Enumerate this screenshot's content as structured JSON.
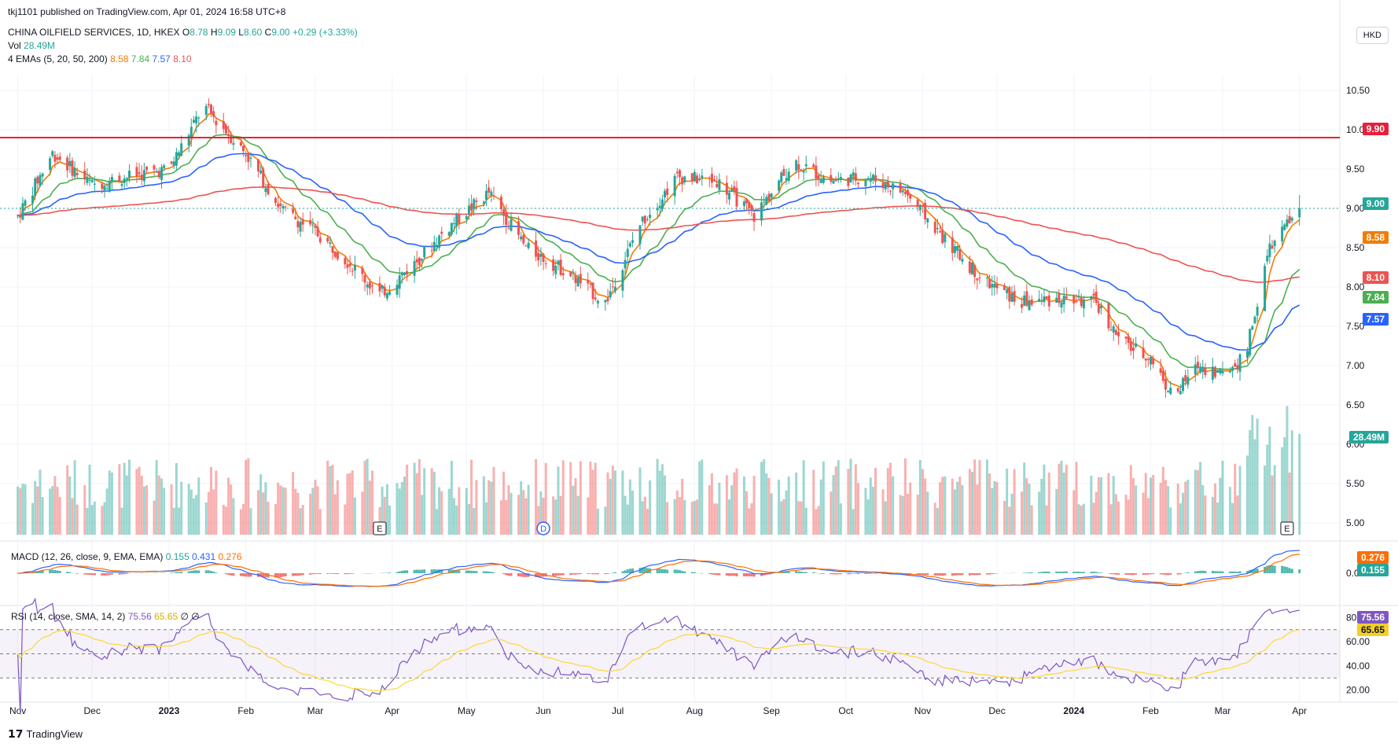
{
  "publisher_line": "tkj1101 published on TradingView.com, Apr 01, 2024 16:58 UTC+8",
  "symbol_line": {
    "name": "CHINA OILFIELD SERVICES, 1D, HKEX",
    "o_label": "O",
    "o": "8.78",
    "h_label": "H",
    "h": "9.09",
    "l_label": "L",
    "l": "8.60",
    "c_label": "C",
    "c": "9.00",
    "change": "+0.29 (+3.33%)"
  },
  "vol_line": {
    "label": "Vol",
    "value": "28.49M"
  },
  "ema_line": {
    "label": "4 EMAs (5, 20, 50, 200)",
    "v5": "8.58",
    "v20": "7.84",
    "v50": "7.57",
    "v200": "8.10"
  },
  "macd_line": {
    "label": "MACD (12, 26, close, 9, EMA, EMA)",
    "hist": "0.155",
    "macd": "0.431",
    "signal": "0.276"
  },
  "rsi_line": {
    "label": "RSI (14, close, SMA, 14, 2)",
    "rsi": "75.56",
    "sma": "65.65",
    "n1": "∅",
    "n2": "∅"
  },
  "currency_button": "HKD",
  "footer_brand": "TradingView",
  "price_axis_ticks": [
    "10.50",
    "10.00",
    "9.50",
    "9.00",
    "8.50",
    "8.00",
    "7.50",
    "7.00",
    "6.50",
    "6.00",
    "5.50",
    "5.00"
  ],
  "macd_axis_ticks": [
    "0.000"
  ],
  "rsi_axis_ticks": [
    "80.00",
    "60.00",
    "40.00",
    "20.00"
  ],
  "time_axis_labels": [
    "Nov",
    "Dec",
    "2023",
    "Feb",
    "Mar",
    "Apr",
    "May",
    "Jun",
    "Jul",
    "Aug",
    "Sep",
    "Oct",
    "Nov",
    "Dec",
    "2024",
    "Feb",
    "Mar",
    "Apr"
  ],
  "price_tags": {
    "resistance": "9.90",
    "last": "9.00",
    "ema5": "8.58",
    "ema200": "8.10",
    "ema20": "7.84",
    "ema50": "7.57",
    "volume": "28.49M",
    "macd": "0.276",
    "macd_hist": "0.155",
    "rsi": "75.56",
    "rsi_sma": "65.65"
  },
  "event_markers": [
    {
      "label": "E",
      "date": "2023-03-27"
    },
    {
      "label": "D",
      "date": "2023-06-01"
    },
    {
      "label": "E",
      "date": "2024-03-27"
    }
  ],
  "colors": {
    "up": "#26a69a",
    "down": "#ef5350",
    "ema5": "#f57c00",
    "ema20": "#4caf50",
    "ema50": "#2962ff",
    "ema200": "#ef5350",
    "resistance": "#e91e3b",
    "last_line": "#26a69a",
    "macd": "#2962ff",
    "signal": "#ff6d00",
    "rsi": "#7e57c2",
    "rsi_sma": "#fdd835"
  },
  "chart_data": {
    "type": "candlestick",
    "title": "CHINA OILFIELD SERVICES, 1D, HKEX",
    "x_range": [
      "2022-11-01",
      "2024-04-01"
    ],
    "ylim": [
      4.85,
      10.7
    ],
    "resistance_level": 9.9,
    "last_close": 9.0,
    "weekly_close_approx": {
      "dates": [
        "2022-11-01",
        "2022-11-15",
        "2022-12-01",
        "2022-12-15",
        "2023-01-01",
        "2023-01-15",
        "2023-02-01",
        "2023-02-15",
        "2023-03-01",
        "2023-03-15",
        "2023-03-27",
        "2023-04-10",
        "2023-04-25",
        "2023-05-10",
        "2023-05-25",
        "2023-06-10",
        "2023-06-26",
        "2023-07-10",
        "2023-07-25",
        "2023-08-10",
        "2023-08-25",
        "2023-09-10",
        "2023-09-25",
        "2023-10-10",
        "2023-10-25",
        "2023-11-10",
        "2023-11-25",
        "2023-12-10",
        "2023-12-25",
        "2024-01-10",
        "2024-01-20",
        "2024-02-01",
        "2024-02-10",
        "2024-02-20",
        "2024-03-01",
        "2024-03-10",
        "2024-03-20",
        "2024-04-01"
      ],
      "values": [
        8.9,
        9.7,
        9.3,
        9.4,
        9.5,
        10.3,
        9.7,
        9.0,
        8.7,
        8.3,
        7.9,
        8.3,
        8.8,
        9.2,
        8.5,
        8.2,
        7.8,
        8.8,
        9.4,
        9.35,
        8.9,
        9.6,
        9.35,
        9.4,
        9.2,
        8.6,
        8.1,
        7.8,
        7.85,
        7.8,
        7.3,
        7.1,
        6.6,
        7.0,
        6.9,
        7.1,
        8.5,
        9.0
      ]
    },
    "ema_latest": {
      "EMA5": 8.58,
      "EMA20": 7.84,
      "EMA50": 7.57,
      "EMA200": 8.1
    },
    "volume_latest": "28.49M",
    "macd_latest": {
      "MACD": 0.431,
      "signal": 0.276,
      "histogram": 0.155
    },
    "rsi_latest": {
      "RSI": 75.56,
      "SMA": 65.65
    },
    "rsi_bands": [
      70,
      50,
      30
    ]
  }
}
